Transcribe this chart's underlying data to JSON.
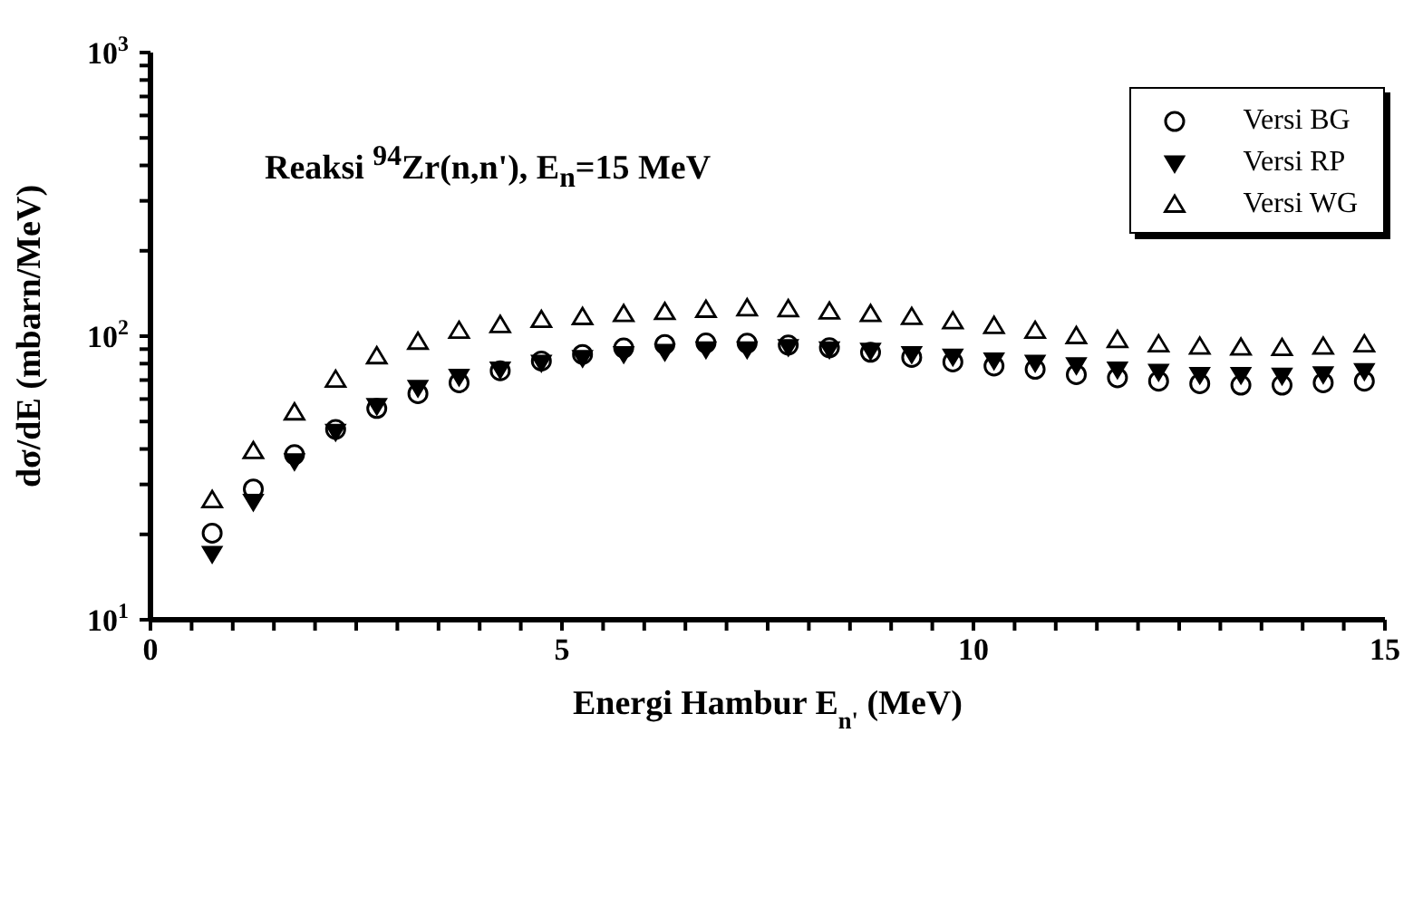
{
  "chart_data": {
    "type": "scatter",
    "title": "Reaksi $^{94}$Zr(n,n'), E$_{n}$=15 MeV",
    "xlabel": "Energi Hambur E$_{n'}$ (MeV)",
    "ylabel": "dσ/dE  (mbarn/MeV)",
    "x": [
      0.75,
      1.25,
      1.75,
      2.25,
      2.75,
      3.25,
      3.75,
      4.25,
      4.75,
      5.25,
      5.75,
      6.25,
      6.75,
      7.25,
      7.75,
      8.25,
      8.75,
      9.25,
      9.75,
      10.25,
      10.75,
      11.25,
      11.75,
      12.25,
      12.75,
      13.25,
      13.75,
      14.25,
      14.75
    ],
    "series": [
      {
        "name": "Versi BG",
        "color": "#000000",
        "marker": "circle",
        "values": [
          20.2,
          28.9,
          38.2,
          46.9,
          55.6,
          62.7,
          68.5,
          75.5,
          81.7,
          86.2,
          90.8,
          93.5,
          94.6,
          94.4,
          93,
          91,
          87.7,
          84.2,
          81.1,
          78.5,
          76.4,
          73.2,
          71.3,
          69.4,
          68,
          67.2,
          67.2,
          68.5,
          69.4
        ]
      },
      {
        "name": "Versi RP",
        "color": "#000000",
        "marker": "triangle-down",
        "values": [
          17.1,
          26.1,
          36.3,
          46.1,
          56.9,
          65.9,
          72.1,
          76.4,
          80.8,
          83.9,
          86.7,
          88.3,
          90,
          90,
          91.8,
          90,
          89,
          86.6,
          84.9,
          82.3,
          80.8,
          79.1,
          76.4,
          75,
          73.2,
          73.2,
          72.7,
          73.5,
          75.5
        ]
      },
      {
        "name": "Versi WG",
        "color": "#000000",
        "marker": "triangle",
        "values": [
          26.4,
          39.3,
          53.8,
          70.2,
          84.9,
          95.5,
          104.4,
          109.4,
          114,
          116.7,
          119.6,
          121.6,
          123.8,
          125.3,
          124.4,
          122,
          119.6,
          116.8,
          112.8,
          108.6,
          104.4,
          100,
          96.9,
          93.5,
          91.8,
          91.1,
          90.8,
          91.8,
          93.5
        ]
      }
    ],
    "log": "y",
    "xlim": [
      0,
      15
    ],
    "xticks": [
      0,
      {
        "value": 0.5,
        "label": null
      },
      {
        "value": 1,
        "label": null
      },
      {
        "value": 1.5,
        "label": null
      },
      {
        "value": 2,
        "label": null
      },
      {
        "value": 2.5,
        "label": null
      },
      {
        "value": 3,
        "label": null
      },
      {
        "value": 3.5,
        "label": null
      },
      {
        "value": 4,
        "label": null
      },
      {
        "value": 4.5,
        "label": null
      },
      5,
      {
        "value": 5.5,
        "label": null
      },
      {
        "value": 6,
        "label": null
      },
      {
        "value": 6.5,
        "label": null
      },
      {
        "value": 7,
        "label": null
      },
      {
        "value": 7.5,
        "label": null
      },
      {
        "value": 8,
        "label": null
      },
      {
        "value": 8.5,
        "label": null
      },
      {
        "value": 9,
        "label": null
      },
      {
        "value": 9.5,
        "label": null
      },
      10,
      {
        "value": 10.5,
        "label": null
      },
      {
        "value": 11,
        "label": null
      },
      {
        "value": 11.5,
        "label": null
      },
      {
        "value": 12,
        "label": null
      },
      {
        "value": 12.5,
        "label": null
      },
      {
        "value": 13,
        "label": null
      },
      {
        "value": 13.5,
        "label": null
      },
      {
        "value": 14,
        "label": null
      },
      {
        "value": 14.5,
        "label": null
      },
      15
    ],
    "ylim": [
      10,
      1000
    ],
    "yticks": [
      {
        "value": 10,
        "label": "10$^{1}$"
      },
      {
        "value": 20,
        "label": null
      },
      {
        "value": 30,
        "label": null
      },
      {
        "value": 40,
        "label": null
      },
      {
        "value": 50,
        "label": null
      },
      {
        "value": 60,
        "label": null
      },
      {
        "value": 70,
        "label": null
      },
      {
        "value": 80,
        "label": null
      },
      {
        "value": 90,
        "label": null
      },
      {
        "value": 100,
        "label": "10$^{2}$"
      },
      {
        "value": 200,
        "label": null
      },
      {
        "value": 300,
        "label": null
      },
      {
        "value": 400,
        "label": null
      },
      {
        "value": 500,
        "label": null
      },
      {
        "value": 600,
        "label": null
      },
      {
        "value": 700,
        "label": null
      },
      {
        "value": 800,
        "label": null
      },
      {
        "value": 900,
        "label": null
      },
      {
        "value": 1000,
        "label": "10$^{3}$"
      }
    ],
    "grid": false,
    "legend": "top right"
  }
}
